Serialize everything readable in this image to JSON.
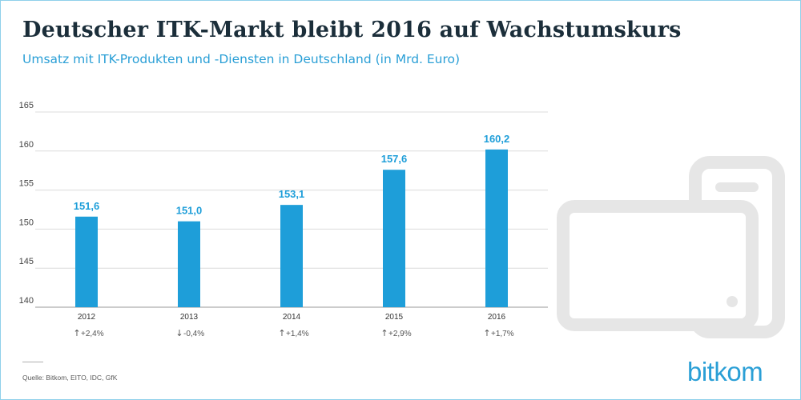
{
  "title": "Deutscher ITK-Markt bleibt 2016 auf Wachstumskurs",
  "subtitle": "Umsatz mit ITK-Produkten und -Diensten in Deutschland (in Mrd. Euro)",
  "source": "Quelle: Bitkom, EITO, IDC, GfK",
  "logo": "bitkom",
  "colors": {
    "bar": "#1e9ed9",
    "value_label": "#1e9ed9",
    "title": "#1b2e3a",
    "subtitle": "#2a9fd6",
    "grid": "#dcdcdc",
    "device_graphic": "#e6e6e6"
  },
  "decoration": {
    "background_icon": "smartphone-and-tablet-outline"
  },
  "chart_data": {
    "type": "bar",
    "categories": [
      "2012",
      "2013",
      "2014",
      "2015",
      "2016"
    ],
    "values": [
      151.6,
      151.0,
      153.1,
      157.6,
      160.2
    ],
    "value_labels": [
      "151,6",
      "151,0",
      "153,1",
      "157,6",
      "160,2"
    ],
    "yticks": [
      140,
      145,
      150,
      155,
      160,
      165
    ],
    "ylim": [
      140,
      165
    ],
    "grid": true,
    "growth": [
      {
        "direction": "up",
        "label": "+2,4%"
      },
      {
        "direction": "down",
        "label": "-0,4%"
      },
      {
        "direction": "up",
        "label": "+1,4%"
      },
      {
        "direction": "up",
        "label": "+2,9%"
      },
      {
        "direction": "up",
        "label": "+1,7%"
      }
    ]
  }
}
